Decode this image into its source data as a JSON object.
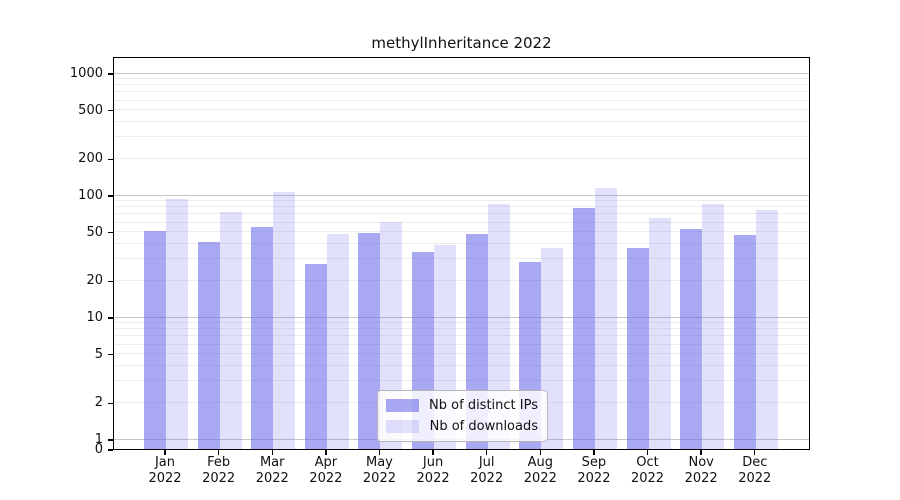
{
  "title": "methylInheritance 2022",
  "chart_data": {
    "type": "bar",
    "title": "methylInheritance 2022",
    "categories": [
      "Jan",
      "Feb",
      "Mar",
      "Apr",
      "May",
      "Jun",
      "Jul",
      "Aug",
      "Sep",
      "Oct",
      "Nov",
      "Dec"
    ],
    "year_label": "2022",
    "series": [
      {
        "name": "Nb of distinct IPs",
        "color": "rgba(105,105,235,0.58)",
        "values": [
          51,
          41,
          55,
          27,
          49,
          34,
          48,
          28,
          79,
          37,
          53,
          47
        ]
      },
      {
        "name": "Nb of downloads",
        "color": "rgba(105,105,235,0.20)",
        "values": [
          92,
          73,
          105,
          48,
          60,
          39,
          84,
          37,
          114,
          65,
          85,
          75
        ]
      }
    ],
    "yscale": "log",
    "ylim": [
      0,
      1377
    ],
    "ytick_labels": [
      1000,
      500,
      200,
      100,
      50,
      20,
      10,
      5,
      2,
      1,
      0
    ],
    "major_grid_values": [
      1,
      10,
      100,
      1000
    ],
    "minor_grid_values": [
      2,
      3,
      4,
      5,
      6,
      7,
      8,
      9,
      20,
      30,
      40,
      50,
      60,
      70,
      80,
      90,
      200,
      300,
      400,
      500,
      600,
      700,
      800,
      900
    ],
    "grid": true,
    "legend_position": "bottom-center"
  }
}
